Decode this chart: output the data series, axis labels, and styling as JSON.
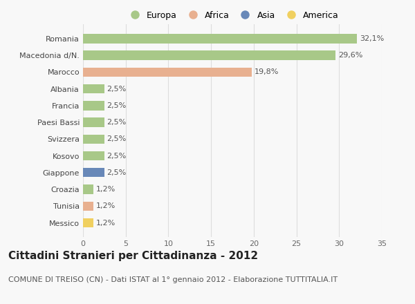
{
  "categories": [
    "Romania",
    "Macedonia d/N.",
    "Marocco",
    "Albania",
    "Francia",
    "Paesi Bassi",
    "Svizzera",
    "Kosovo",
    "Giappone",
    "Croazia",
    "Tunisia",
    "Messico"
  ],
  "values": [
    32.1,
    29.6,
    19.8,
    2.5,
    2.5,
    2.5,
    2.5,
    2.5,
    2.5,
    1.2,
    1.2,
    1.2
  ],
  "labels": [
    "32,1%",
    "29,6%",
    "19,8%",
    "2,5%",
    "2,5%",
    "2,5%",
    "2,5%",
    "2,5%",
    "2,5%",
    "1,2%",
    "1,2%",
    "1,2%"
  ],
  "bar_colors": [
    "#a8c888",
    "#a8c888",
    "#e8b090",
    "#a8c888",
    "#a8c888",
    "#a8c888",
    "#a8c888",
    "#a8c888",
    "#6888b8",
    "#a8c888",
    "#e8b090",
    "#f0d060"
  ],
  "continent_colors": {
    "Europa": "#a8c888",
    "Africa": "#e8b090",
    "Asia": "#6888b8",
    "America": "#f0d060"
  },
  "legend_labels": [
    "Europa",
    "Africa",
    "Asia",
    "America"
  ],
  "title": "Cittadini Stranieri per Cittadinanza - 2012",
  "subtitle": "COMUNE DI TREISO (CN) - Dati ISTAT al 1° gennaio 2012 - Elaborazione TUTTITALIA.IT",
  "xlim": [
    0,
    35
  ],
  "xticks": [
    0,
    5,
    10,
    15,
    20,
    25,
    30,
    35
  ],
  "background_color": "#f8f8f8",
  "grid_color": "#dddddd",
  "title_fontsize": 11,
  "subtitle_fontsize": 8,
  "label_fontsize": 8,
  "tick_fontsize": 8,
  "legend_fontsize": 9
}
